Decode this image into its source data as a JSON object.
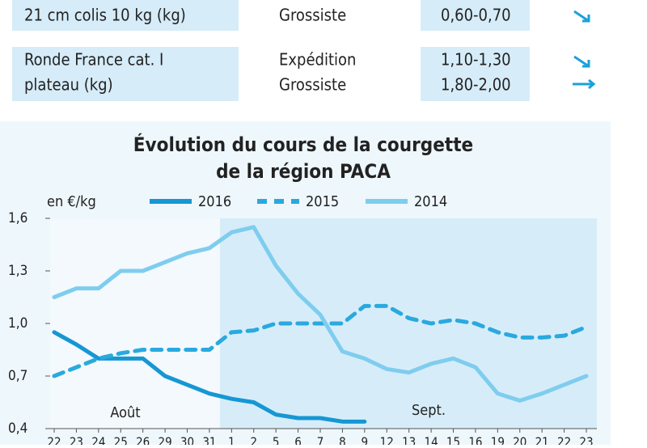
{
  "table": {
    "rows": [
      {
        "product": "21 cm colis 10 kg (kg)",
        "stages": [
          "Grossiste"
        ],
        "prices": [
          "0,60-0,70"
        ]
      },
      {
        "product": [
          "Ronde France cat. I",
          "plateau (kg)"
        ],
        "stages": [
          "Expédition",
          "Grossiste"
        ],
        "prices": [
          "1,10-1,30",
          "1,80-2,00"
        ]
      }
    ]
  },
  "chart_data": {
    "type": "line",
    "title": [
      "Évolution du cours de la courgette",
      "de la région PACA"
    ],
    "y_label": "en €/kg",
    "annotations": [
      "Août",
      "Sept."
    ],
    "categories": [
      "22",
      "23",
      "24",
      "25",
      "26",
      "29",
      "30",
      "31",
      "1",
      "2",
      "5",
      "6",
      "7",
      "8",
      "9",
      "12",
      "13",
      "14",
      "15",
      "16",
      "19",
      "20",
      "21",
      "22",
      "23"
    ],
    "series": [
      {
        "name": "2016",
        "color": "#1697d4",
        "dash": false,
        "values": [
          0.95,
          0.88,
          0.8,
          0.8,
          0.8,
          0.7,
          0.65,
          0.6,
          0.57,
          0.55,
          0.48,
          0.46,
          0.46,
          0.44,
          0.44,
          null,
          null,
          null,
          null,
          null,
          null,
          null,
          null,
          null,
          null
        ]
      },
      {
        "name": "2015",
        "color": "#2aa9df",
        "dash": true,
        "values": [
          0.7,
          0.75,
          0.8,
          0.83,
          0.85,
          0.85,
          0.85,
          0.85,
          0.95,
          0.96,
          1.0,
          1.0,
          1.0,
          1.0,
          1.1,
          1.1,
          1.03,
          1.0,
          1.02,
          1.0,
          0.95,
          0.92,
          0.92,
          0.93,
          0.98
        ]
      },
      {
        "name": "2014",
        "color": "#7fcdee",
        "dash": false,
        "values": [
          1.15,
          1.2,
          1.2,
          1.3,
          1.3,
          1.35,
          1.4,
          1.43,
          1.52,
          1.55,
          1.33,
          1.17,
          1.05,
          0.84,
          0.8,
          0.74,
          0.72,
          0.77,
          0.8,
          0.75,
          0.6,
          0.56,
          0.6,
          0.65,
          0.7
        ]
      }
    ],
    "ylim": [
      0.4,
      1.6
    ],
    "yticks": [
      {
        "value": 0.4,
        "label": "0,4"
      },
      {
        "value": 0.7,
        "label": "0,7"
      },
      {
        "value": 1.0,
        "label": "1,0"
      },
      {
        "value": 1.3,
        "label": "1,3"
      },
      {
        "value": 1.6,
        "label": "1,6"
      }
    ]
  }
}
